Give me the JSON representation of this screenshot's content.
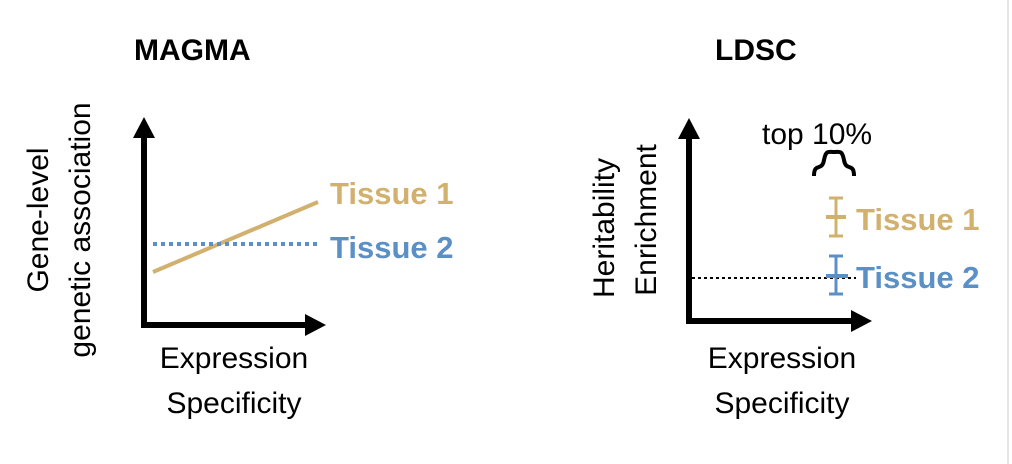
{
  "colors": {
    "tissue1": "#D2B06E",
    "tissue2": "#5B90C6",
    "axis": "#000000"
  },
  "magma": {
    "title": "MAGMA",
    "ylabel_line1": "Gene-level",
    "ylabel_line2": "genetic association",
    "xlabel_line1": "Expression",
    "xlabel_line2": "Specificity",
    "series": [
      {
        "name": "Tissue 1",
        "style": "solid",
        "trend": "increasing"
      },
      {
        "name": "Tissue 2",
        "style": "dotted",
        "trend": "flat"
      }
    ]
  },
  "ldsc": {
    "title": "LDSC",
    "ylabel_line1": "Heritability",
    "ylabel_line2": "Enrichment",
    "xlabel_line1": "Expression",
    "xlabel_line2": "Specificity",
    "bracket_label": "top 10%",
    "series": [
      {
        "name": "Tissue 1",
        "level": "high"
      },
      {
        "name": "Tissue 2",
        "level": "baseline"
      }
    ]
  }
}
